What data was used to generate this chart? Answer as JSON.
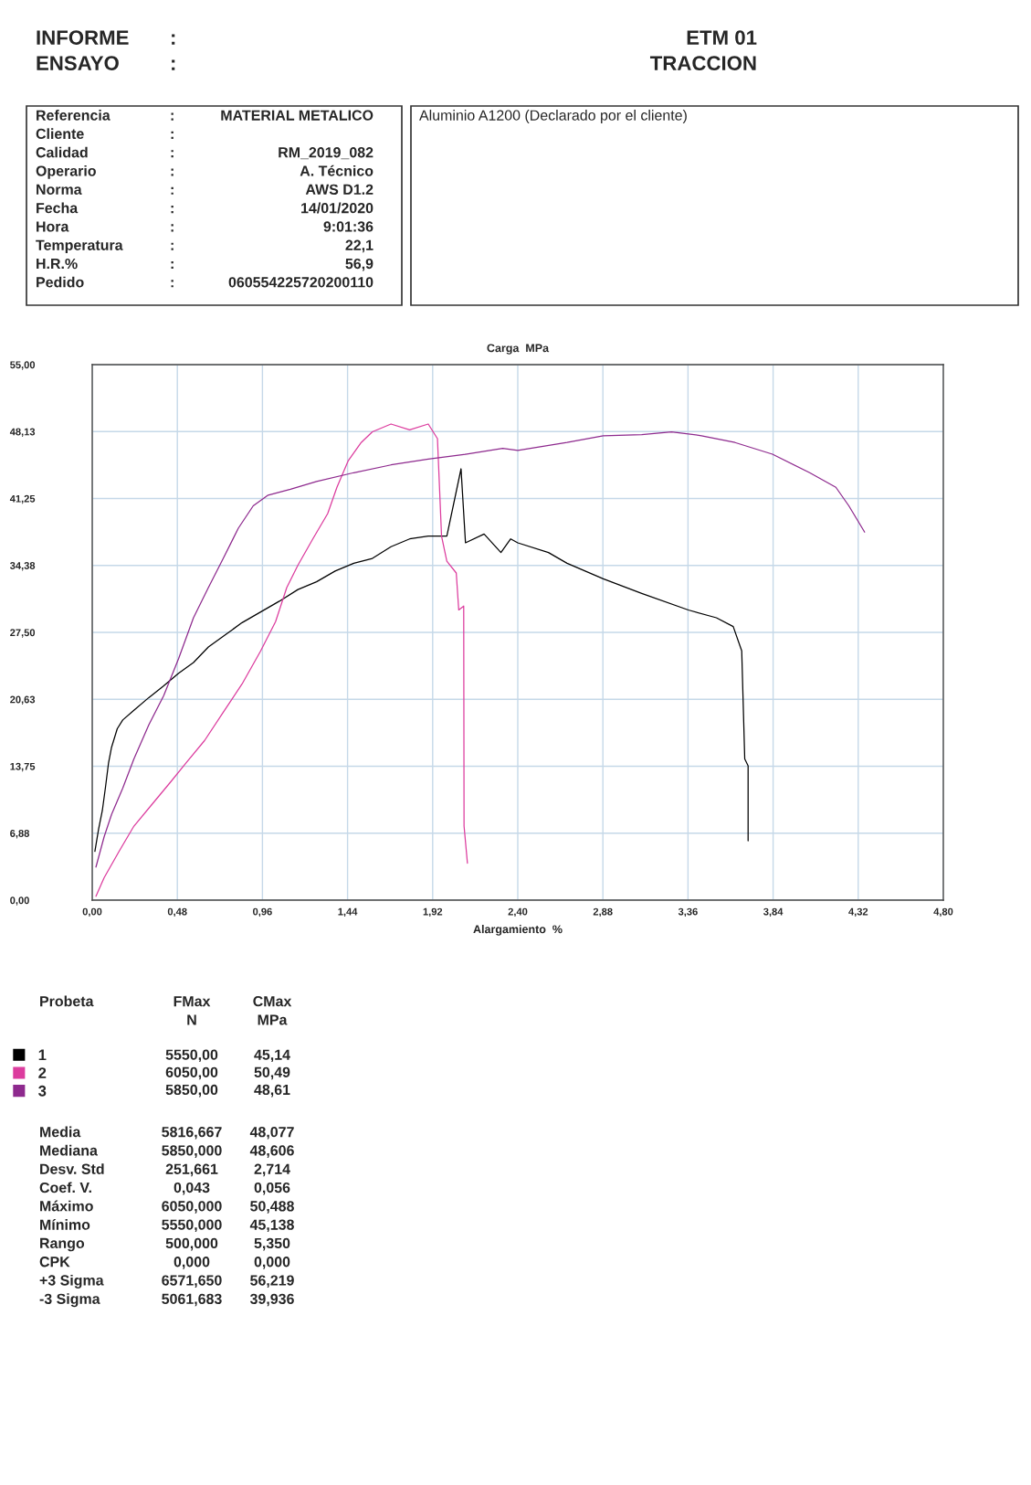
{
  "chart_data": {
    "type": "line",
    "title": "Carga  MPa",
    "xlabel": "Alargamiento  %",
    "xlim": [
      0,
      4.8
    ],
    "ylim": [
      0,
      55
    ],
    "xticks": [
      {
        "value": 0,
        "label": "0,00"
      },
      {
        "value": 0.48,
        "label": "0,48"
      },
      {
        "value": 0.96,
        "label": "0,96"
      },
      {
        "value": 1.44,
        "label": "1,44"
      },
      {
        "value": 1.92,
        "label": "1,92"
      },
      {
        "value": 2.4,
        "label": "2,40"
      },
      {
        "value": 2.88,
        "label": "2,88"
      },
      {
        "value": 3.36,
        "label": "3,36"
      },
      {
        "value": 3.84,
        "label": "3,84"
      },
      {
        "value": 4.32,
        "label": "4,32"
      },
      {
        "value": 4.8,
        "label": "4,80"
      }
    ],
    "yticks": [
      {
        "value": 0,
        "label": "0,00"
      },
      {
        "value": 6.875,
        "label": "6,88"
      },
      {
        "value": 13.75,
        "label": "13,75"
      },
      {
        "value": 20.625,
        "label": "20,63"
      },
      {
        "value": 27.5,
        "label": "27,50"
      },
      {
        "value": 34.375,
        "label": "34,38"
      },
      {
        "value": 41.25,
        "label": "41,25"
      },
      {
        "value": 48.125,
        "label": "48,13"
      },
      {
        "value": 55,
        "label": "55,00"
      }
    ],
    "grid": true,
    "legend": "bottom left",
    "line_style": "solid",
    "series": [
      {
        "name": "1",
        "color": "#000000",
        "x": [
          0.015,
          0.036,
          0.057,
          0.074,
          0.092,
          0.109,
          0.141,
          0.172,
          0.235,
          0.319,
          0.403,
          0.487,
          0.571,
          0.655,
          0.739,
          0.845,
          0.95,
          1.055,
          1.16,
          1.265,
          1.37,
          1.475,
          1.58,
          1.685,
          1.79,
          1.895,
          2.0,
          2.08,
          2.105,
          2.21,
          2.305,
          2.36,
          2.4,
          2.573,
          2.678,
          2.882,
          3.099,
          3.362,
          3.52,
          3.615,
          3.663,
          3.68,
          3.699,
          3.699
        ],
        "values": [
          5.0,
          7.3,
          9.2,
          11.5,
          14.1,
          15.7,
          17.6,
          18.5,
          19.5,
          20.8,
          22.0,
          23.3,
          24.4,
          26.0,
          27.1,
          28.5,
          29.6,
          30.7,
          31.9,
          32.7,
          33.8,
          34.6,
          35.1,
          36.3,
          37.1,
          37.4,
          37.4,
          44.3,
          36.7,
          37.6,
          35.7,
          37.1,
          36.7,
          35.7,
          34.6,
          33.0,
          31.5,
          29.8,
          29.0,
          28.1,
          25.6,
          14.5,
          13.8,
          6.1
        ]
      },
      {
        "name": "2",
        "color": "#dc3c9e",
        "x": [
          0.021,
          0.067,
          0.151,
          0.235,
          0.34,
          0.445,
          0.529,
          0.634,
          0.739,
          0.845,
          0.95,
          1.034,
          1.097,
          1.16,
          1.244,
          1.328,
          1.38,
          1.443,
          1.517,
          1.58,
          1.685,
          1.79,
          1.895,
          1.947,
          1.97,
          2.0,
          2.053,
          2.067,
          2.095,
          2.097,
          2.116
        ],
        "values": [
          0.4,
          2.3,
          5.0,
          7.6,
          9.9,
          12.2,
          14.1,
          16.4,
          19.3,
          22.2,
          25.6,
          28.6,
          32.1,
          34.4,
          37.1,
          39.7,
          42.4,
          45.1,
          47.0,
          48.1,
          48.9,
          48.3,
          48.9,
          47.4,
          37.4,
          34.8,
          33.6,
          29.8,
          30.2,
          7.6,
          3.8
        ]
      },
      {
        "name": "3",
        "color": "#8e2a8e",
        "x": [
          0.021,
          0.067,
          0.109,
          0.172,
          0.235,
          0.319,
          0.403,
          0.487,
          0.571,
          0.655,
          0.739,
          0.824,
          0.908,
          0.992,
          1.118,
          1.265,
          1.475,
          1.685,
          1.895,
          2.105,
          2.315,
          2.4,
          2.678,
          2.882,
          3.099,
          3.267,
          3.436,
          3.625,
          3.836,
          4.046,
          4.194,
          4.267,
          4.356
        ],
        "values": [
          3.4,
          6.5,
          8.8,
          11.5,
          14.5,
          18.0,
          21.0,
          24.8,
          29.0,
          32.1,
          35.1,
          38.2,
          40.5,
          41.6,
          42.2,
          43.0,
          43.9,
          44.7,
          45.3,
          45.8,
          46.4,
          46.2,
          47.0,
          47.7,
          47.8,
          48.1,
          47.7,
          47.0,
          45.8,
          43.9,
          42.4,
          40.5,
          37.8
        ]
      }
    ],
    "annotations": [
      "INFORME\nENSAYO",
      ":\n:",
      "ETM 01\nTRACCION",
      "Referencia\nCliente\nCalidad\nOperario\nNorma\nFecha\nHora\nTemperatura\nH.R.%\nPedido",
      ":\n:\n:\n:\n:\n:\n:\n:\n:\n:",
      "MATERIAL METALICO\n\nRM_2019_082\nA. Técnico\nAWS D1.2\n14/01/2020\n9:01:36\n22,1\n56,9\n060554225720200110",
      "Aluminio A1200 (Declarado por el cliente)",
      "Probeta",
      "FMax\nN",
      "CMax\nMPa",
      "5550,00\n6050,00\n5850,00",
      "45,14\n50,49\n48,61",
      "Media\nMediana\nDesv. Std\nCoef. V.\nMáximo\nMínimo\nRango\nCPK\n+3 Sigma\n-3 Sigma",
      "5816,667\n5850,000\n251,661\n0,043\n6050,000\n5550,000\n500,000\n0,000\n6571,650\n5061,683",
      "48,077\n48,606\n2,714\n0,056\n50,488\n45,138\n5,350\n0,000\n56,219\n39,936"
    ]
  }
}
